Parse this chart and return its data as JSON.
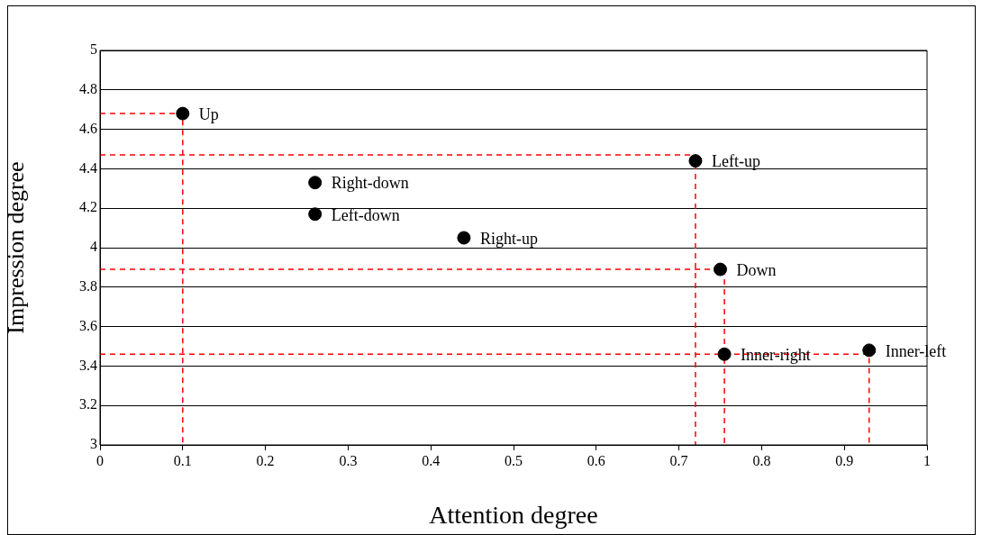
{
  "chart_data": {
    "type": "scatter",
    "xlabel": "Attention degree",
    "ylabel": "Impression degree",
    "xlim": [
      0,
      1
    ],
    "xticks": [
      0,
      0.1,
      0.2,
      0.3,
      0.4,
      0.5,
      0.6,
      0.7,
      0.8,
      0.9,
      1
    ],
    "ylim": [
      3,
      5
    ],
    "yticks": [
      3,
      3.2,
      3.4,
      3.6,
      3.8,
      4,
      4.2,
      4.4,
      4.6,
      4.8,
      5
    ],
    "grid": "y",
    "legend": false,
    "series": [
      {
        "color": "#000000",
        "marker": "circle",
        "x": [
          0.1,
          0.26,
          0.26,
          0.44,
          0.72,
          0.75,
          0.755,
          0.93
        ],
        "values": [
          4.68,
          4.33,
          4.17,
          4.05,
          4.44,
          3.89,
          3.46,
          3.48
        ]
      },
      {
        "type": "line",
        "color": "#ff0000",
        "line_style": "dashed",
        "marker": "none",
        "x": [
          0,
          0.1,
          0.1
        ],
        "values": [
          4.68,
          4.68,
          3
        ]
      },
      {
        "type": "line",
        "color": "#ff0000",
        "line_style": "dashed",
        "marker": "none",
        "x": [
          0,
          0.72,
          0.72
        ],
        "values": [
          4.47,
          4.47,
          3
        ]
      },
      {
        "type": "line",
        "color": "#ff0000",
        "line_style": "dashed",
        "marker": "none",
        "x": [
          0,
          0.755,
          0.755
        ],
        "values": [
          3.89,
          3.89,
          3
        ]
      },
      {
        "type": "line",
        "color": "#ff0000",
        "line_style": "dashed",
        "marker": "none",
        "x": [
          0,
          0.93,
          0.93
        ],
        "values": [
          3.46,
          3.46,
          3
        ]
      }
    ],
    "annotations": [
      {
        "text": "Up",
        "x": 0.1,
        "y": 4.68
      },
      {
        "text": "Right-down",
        "x": 0.26,
        "y": 4.33
      },
      {
        "text": "Left-down",
        "x": 0.26,
        "y": 4.17
      },
      {
        "text": "Right-up",
        "x": 0.44,
        "y": 4.05
      },
      {
        "text": "Left-up",
        "x": 0.72,
        "y": 4.44
      },
      {
        "text": "Down",
        "x": 0.75,
        "y": 3.89
      },
      {
        "text": "Inner-right",
        "x": 0.755,
        "y": 3.46
      },
      {
        "text": "Inner-left",
        "x": 0.93,
        "y": 3.48
      }
    ]
  }
}
